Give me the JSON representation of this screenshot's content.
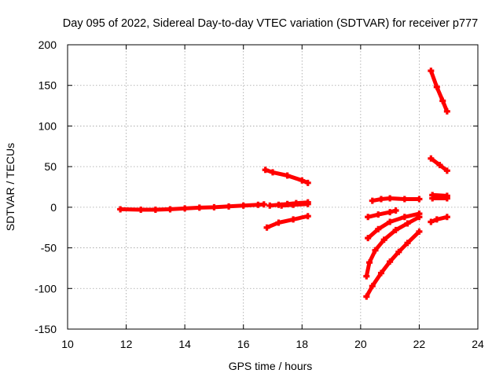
{
  "chart_data": {
    "type": "scatter",
    "title": "Day 095 of 2022, Sidereal Day-to-day VTEC variation (SDTVAR) for receiver p777",
    "xlabel": "GPS time / hours",
    "ylabel": "SDTVAR / TECUs",
    "xlim": [
      10,
      24
    ],
    "ylim": [
      -150,
      200
    ],
    "xticks": [
      "10",
      "12",
      "14",
      "16",
      "18",
      "20",
      "22",
      "24"
    ],
    "yticks": [
      "-150",
      "-100",
      "-50",
      "0",
      "50",
      "100",
      "150",
      "200"
    ],
    "grid": true,
    "marker": "plus",
    "color": "#ff0000",
    "segments": [
      {
        "points": [
          [
            11.8,
            -2.5
          ],
          [
            12.5,
            -3
          ],
          [
            13.0,
            -3
          ],
          [
            13.5,
            -2.5
          ],
          [
            14.0,
            -1.5
          ],
          [
            14.5,
            -0.5
          ],
          [
            15.0,
            0
          ],
          [
            15.5,
            1
          ],
          [
            16.0,
            2
          ],
          [
            16.5,
            3
          ],
          [
            16.7,
            3.5
          ]
        ]
      },
      {
        "points": [
          [
            16.75,
            46
          ],
          [
            17.0,
            43
          ],
          [
            17.5,
            39
          ],
          [
            18.0,
            33
          ],
          [
            18.2,
            30
          ]
        ]
      },
      {
        "points": [
          [
            16.8,
            -25
          ],
          [
            17.2,
            -19
          ],
          [
            17.7,
            -15
          ],
          [
            18.2,
            -11
          ]
        ]
      },
      {
        "points": [
          [
            16.9,
            2
          ],
          [
            17.2,
            3
          ],
          [
            17.5,
            4
          ],
          [
            17.8,
            5
          ],
          [
            18.2,
            6
          ]
        ]
      },
      {
        "points": [
          [
            17.3,
            2
          ],
          [
            17.7,
            3
          ],
          [
            18.2,
            4
          ]
        ]
      },
      {
        "points": [
          [
            20.25,
            -12
          ],
          [
            20.6,
            -9
          ],
          [
            21.0,
            -6
          ],
          [
            21.2,
            -4
          ]
        ]
      },
      {
        "points": [
          [
            20.4,
            8
          ],
          [
            20.7,
            10
          ],
          [
            21.0,
            11
          ],
          [
            21.5,
            10
          ],
          [
            22.0,
            10
          ]
        ]
      },
      {
        "points": [
          [
            20.25,
            -38
          ],
          [
            20.6,
            -27
          ],
          [
            21.0,
            -18
          ],
          [
            21.5,
            -12
          ],
          [
            22.0,
            -8
          ]
        ]
      },
      {
        "points": [
          [
            20.2,
            -85
          ],
          [
            20.3,
            -68
          ],
          [
            20.5,
            -53
          ],
          [
            20.8,
            -40
          ],
          [
            21.2,
            -28
          ],
          [
            21.6,
            -20
          ],
          [
            22.0,
            -12
          ]
        ]
      },
      {
        "points": [
          [
            20.2,
            -110
          ],
          [
            20.4,
            -97
          ],
          [
            20.7,
            -81
          ],
          [
            21.0,
            -67
          ],
          [
            21.3,
            -55
          ],
          [
            21.6,
            -44
          ],
          [
            22.0,
            -30
          ]
        ]
      },
      {
        "points": [
          [
            22.4,
            -18
          ],
          [
            22.6,
            -15
          ],
          [
            22.95,
            -12
          ]
        ]
      },
      {
        "points": [
          [
            22.45,
            11
          ],
          [
            22.95,
            11
          ]
        ]
      },
      {
        "points": [
          [
            22.45,
            15
          ],
          [
            22.95,
            14
          ]
        ]
      },
      {
        "points": [
          [
            22.4,
            60
          ],
          [
            22.7,
            52
          ],
          [
            22.95,
            45
          ]
        ]
      },
      {
        "points": [
          [
            22.4,
            168
          ],
          [
            22.6,
            148
          ],
          [
            22.8,
            131
          ],
          [
            22.95,
            118
          ]
        ]
      }
    ]
  }
}
